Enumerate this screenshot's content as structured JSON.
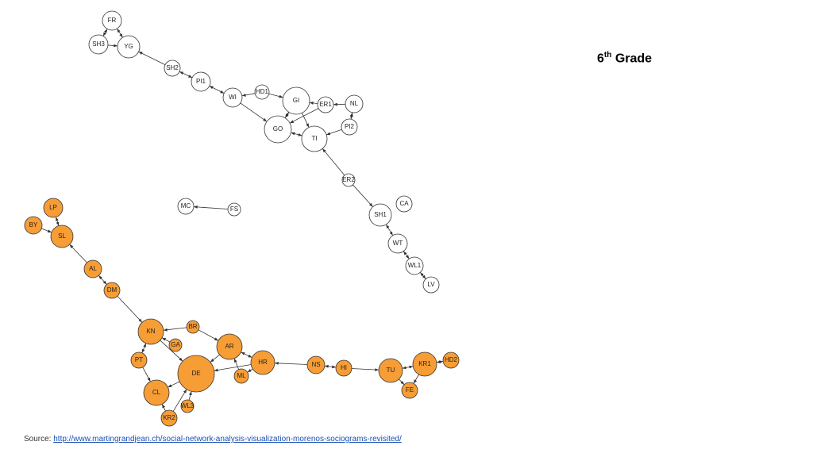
{
  "header": {
    "title": {
      "number": "6",
      "suffix": "th",
      "text": "Grade"
    }
  },
  "nodes": [
    {
      "label": "FR"
    },
    {
      "label": "SH3"
    },
    {
      "label": "YG"
    },
    {
      "label": "SH2"
    },
    {
      "label": "PI1"
    },
    {
      "label": "WI"
    },
    {
      "label": "HD1"
    },
    {
      "label": "GI"
    },
    {
      "label": "ER1"
    },
    {
      "label": "NL"
    },
    {
      "label": "PI2"
    },
    {
      "label": "GO"
    },
    {
      "label": "TI"
    },
    {
      "label": "ER2"
    },
    {
      "label": "SH1"
    },
    {
      "label": "CA"
    },
    {
      "label": "WT"
    },
    {
      "label": "WL1"
    },
    {
      "label": "LV"
    },
    {
      "label": "MC"
    },
    {
      "label": "FS"
    },
    {
      "label": "LP"
    },
    {
      "label": "BY"
    },
    {
      "label": "SL"
    },
    {
      "label": "AL"
    },
    {
      "label": "DM"
    },
    {
      "label": "KN"
    },
    {
      "label": "BR"
    },
    {
      "label": "GA"
    },
    {
      "label": "AR"
    },
    {
      "label": "PT"
    },
    {
      "label": "DE"
    },
    {
      "label": "HR"
    },
    {
      "label": "ML"
    },
    {
      "label": "CL"
    },
    {
      "label": "KR2"
    },
    {
      "label": "WL3"
    },
    {
      "label": "NS"
    },
    {
      "label": "HI"
    },
    {
      "label": "TU"
    },
    {
      "label": "KR1"
    },
    {
      "label": "HD2"
    },
    {
      "label": "FE"
    }
  ],
  "footer": {
    "source_label": "Source:",
    "url": "http://www.martingrandjean.ch/social-network-analysis-visualization-morenos-sociograms-revisited/"
  }
}
